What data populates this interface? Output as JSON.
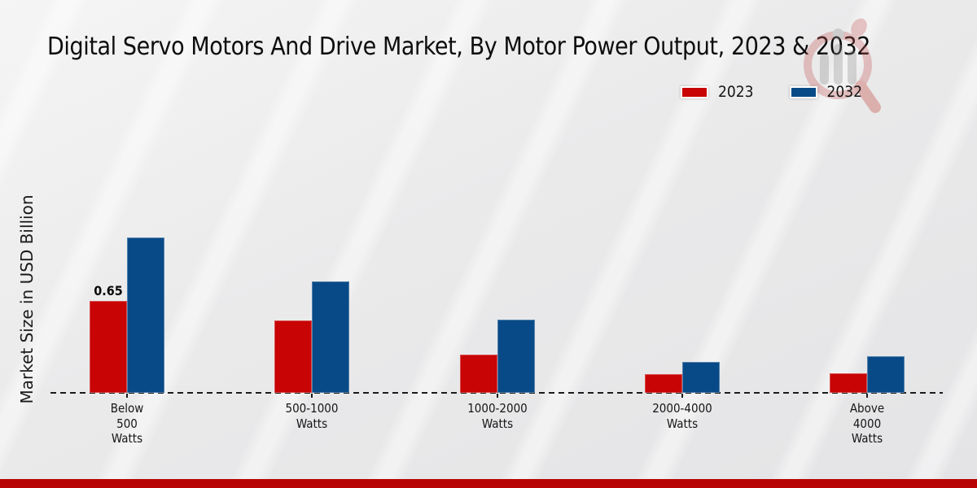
{
  "title": "Digital Servo Motors And Drive Market, By Motor Power Output, 2023 & 2032",
  "ylabel": "Market Size in USD Billion",
  "legend": {
    "position": "top-right",
    "items": [
      {
        "label": "2023",
        "color": "#c80404"
      },
      {
        "label": "2032",
        "color": "#084a87"
      }
    ]
  },
  "colors": {
    "series_2023": "#c80404",
    "series_2032": "#084a87",
    "footer_bar": "#b80404",
    "axis_line": "#1b1b1b",
    "background": "#eaeaeb"
  },
  "watermark": {
    "name": "market-research-future-logo"
  },
  "footer": {
    "bar_color": "#b80404"
  },
  "chart_data": {
    "type": "bar",
    "title": "Digital Servo Motors And Drive Market, By Motor Power Output, 2023 & 2032",
    "xlabel": "",
    "ylabel": "Market Size in USD Billion",
    "categories": [
      "Below 500 Watts",
      "500-1000 Watts",
      "1000-2000 Watts",
      "2000-4000 Watts",
      "Above 4000 Watts"
    ],
    "categories_lines": [
      [
        "Below",
        "500",
        "Watts"
      ],
      [
        "500-1000",
        "Watts"
      ],
      [
        "1000-2000",
        "Watts"
      ],
      [
        "2000-4000",
        "Watts"
      ],
      [
        "Above",
        "4000",
        "Watts"
      ]
    ],
    "series": [
      {
        "name": "2023",
        "color": "#c80404",
        "values": [
          0.65,
          0.51,
          0.27,
          0.13,
          0.14
        ]
      },
      {
        "name": "2032",
        "color": "#084a87",
        "values": [
          1.1,
          0.79,
          0.52,
          0.22,
          0.26
        ]
      }
    ],
    "annotations": [
      {
        "series": "2023",
        "category_index": 0,
        "text": "0.65"
      }
    ],
    "ylim": [
      0,
      1.25
    ],
    "grid": false,
    "y_axis_ticks_visible": false,
    "baseline_style": "dashed",
    "legend_position": "top-right"
  }
}
